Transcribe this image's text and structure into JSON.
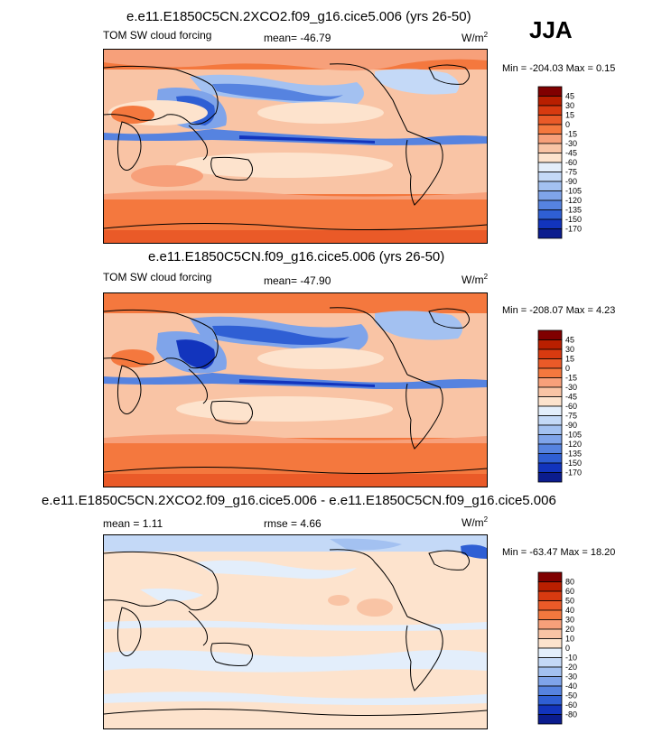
{
  "season": "JJA",
  "panels": [
    {
      "title": "e.e11.E1850C5CN.2XCO2.f09_g16.cice5.006 (yrs 26-50)",
      "left_label": "TOM SW cloud forcing",
      "center_label": "mean= -46.79",
      "units": "W/m",
      "units_sup": "2",
      "minmax": "Min = -204.03 Max =   0.15",
      "colorbar": {
        "levels": [
          "45",
          "30",
          "15",
          "0",
          "-15",
          "-30",
          "-45",
          "-60",
          "-75",
          "-90",
          "-105",
          "-120",
          "-135",
          "-150",
          "-170"
        ],
        "colors": [
          "#800000",
          "#b91f00",
          "#d83a10",
          "#ea5a28",
          "#f4783e",
          "#f7a07a",
          "#f9c4a5",
          "#fde3cd",
          "#e3eefb",
          "#c4d9f7",
          "#a3c1f1",
          "#7fa4ea",
          "#5683e0",
          "#2f5fd4",
          "#1234bd",
          "#0b1c8e"
        ]
      }
    },
    {
      "title": "e.e11.E1850C5CN.f09_g16.cice5.006 (yrs 26-50)",
      "left_label": "TOM SW cloud forcing",
      "center_label": "mean= -47.90",
      "units": "W/m",
      "units_sup": "2",
      "minmax": "Min = -208.07 Max =   4.23",
      "colorbar": {
        "levels": [
          "45",
          "30",
          "15",
          "0",
          "-15",
          "-30",
          "-45",
          "-60",
          "-75",
          "-90",
          "-105",
          "-120",
          "-135",
          "-150",
          "-170"
        ],
        "colors": [
          "#800000",
          "#b91f00",
          "#d83a10",
          "#ea5a28",
          "#f4783e",
          "#f7a07a",
          "#f9c4a5",
          "#fde3cd",
          "#e3eefb",
          "#c4d9f7",
          "#a3c1f1",
          "#7fa4ea",
          "#5683e0",
          "#2f5fd4",
          "#1234bd",
          "#0b1c8e"
        ]
      }
    },
    {
      "title": "e.e11.E1850C5CN.2XCO2.f09_g16.cice5.006 - e.e11.E1850C5CN.f09_g16.cice5.006",
      "left_label": "mean =  1.11",
      "center_label": "rmse =  4.66",
      "units": "W/m",
      "units_sup": "2",
      "minmax": "Min = -63.47 Max =  18.20",
      "colorbar": {
        "levels": [
          "80",
          "60",
          "50",
          "40",
          "30",
          "20",
          "10",
          "0",
          "-10",
          "-20",
          "-30",
          "-40",
          "-50",
          "-60",
          "-80"
        ],
        "colors": [
          "#800000",
          "#b91f00",
          "#d83a10",
          "#ea5a28",
          "#f4783e",
          "#f7a07a",
          "#f9c4a5",
          "#fde3cd",
          "#e3eefb",
          "#c4d9f7",
          "#a3c1f1",
          "#7fa4ea",
          "#5683e0",
          "#2f5fd4",
          "#1234bd",
          "#0b1c8e"
        ]
      }
    }
  ],
  "chart_data": [
    {
      "type": "heatmap",
      "title": "e.e11.E1850C5CN.2XCO2.f09_g16.cice5.006 (yrs 26-50)",
      "variable": "TOM SW cloud forcing",
      "units": "W/m2",
      "season": "JJA",
      "mean": -46.79,
      "min": -204.03,
      "max": 0.15,
      "contour_levels": [
        45,
        30,
        15,
        0,
        -15,
        -30,
        -45,
        -60,
        -75,
        -90,
        -105,
        -120,
        -135,
        -150,
        -170
      ]
    },
    {
      "type": "heatmap",
      "title": "e.e11.E1850C5CN.f09_g16.cice5.006 (yrs 26-50)",
      "variable": "TOM SW cloud forcing",
      "units": "W/m2",
      "season": "JJA",
      "mean": -47.9,
      "min": -208.07,
      "max": 4.23,
      "contour_levels": [
        45,
        30,
        15,
        0,
        -15,
        -30,
        -45,
        -60,
        -75,
        -90,
        -105,
        -120,
        -135,
        -150,
        -170
      ]
    },
    {
      "type": "heatmap",
      "title": "e.e11.E1850C5CN.2XCO2.f09_g16.cice5.006 - e.e11.E1850C5CN.f09_g16.cice5.006",
      "units": "W/m2",
      "season": "JJA",
      "mean": 1.11,
      "rmse": 4.66,
      "min": -63.47,
      "max": 18.2,
      "contour_levels": [
        80,
        60,
        50,
        40,
        30,
        20,
        10,
        0,
        -10,
        -20,
        -30,
        -40,
        -50,
        -60,
        -80
      ]
    }
  ]
}
